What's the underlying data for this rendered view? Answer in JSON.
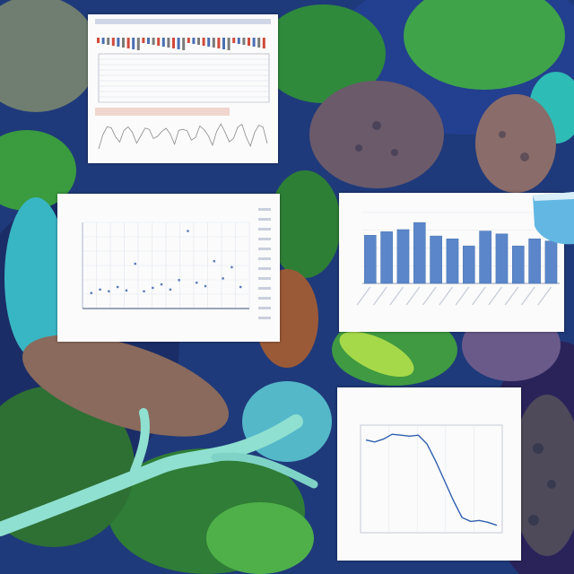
{
  "image": {
    "description_text": ""
  },
  "panels": [
    {
      "id": "top-left",
      "kind": "spectrogram-sheet",
      "accent_colors": [
        "#d24a3a",
        "#4a6fb5",
        "#7a7a7a"
      ]
    },
    {
      "id": "middle-left",
      "kind": "scatter-plot",
      "chart_data": {
        "type": "scatter",
        "x": [
          1,
          2,
          3,
          4,
          5,
          6,
          7,
          8,
          9,
          10,
          11,
          12,
          13,
          14,
          15,
          16,
          17,
          18
        ],
        "y": [
          0.18,
          0.22,
          0.2,
          0.25,
          0.21,
          0.52,
          0.2,
          0.24,
          0.28,
          0.22,
          0.33,
          0.9,
          0.3,
          0.26,
          0.55,
          0.35,
          0.48,
          0.25
        ],
        "xlim": [
          0,
          19
        ],
        "ylim": [
          0,
          1
        ],
        "grid": true,
        "color": "#5b7bb8"
      }
    },
    {
      "id": "middle-right",
      "kind": "bar-chart",
      "chart_data": {
        "type": "bar",
        "values": [
          0.68,
          0.73,
          0.76,
          0.86,
          0.67,
          0.63,
          0.53,
          0.74,
          0.7,
          0.53,
          0.63,
          0.6
        ],
        "ylim": [
          0,
          1
        ],
        "grid": true,
        "color": "#5b86c9"
      }
    },
    {
      "id": "bottom-right",
      "kind": "line-chart",
      "chart_data": {
        "type": "line",
        "x": [
          0,
          1,
          2,
          3,
          4,
          5,
          6,
          7,
          8,
          9,
          10,
          11,
          12,
          13,
          14,
          15
        ],
        "y": [
          0.92,
          0.9,
          0.93,
          0.98,
          0.97,
          0.96,
          0.97,
          0.88,
          0.7,
          0.5,
          0.3,
          0.12,
          0.08,
          0.09,
          0.07,
          0.04
        ],
        "ylim": [
          0,
          1
        ],
        "grid": true,
        "color": "#2f5fb0"
      }
    }
  ]
}
